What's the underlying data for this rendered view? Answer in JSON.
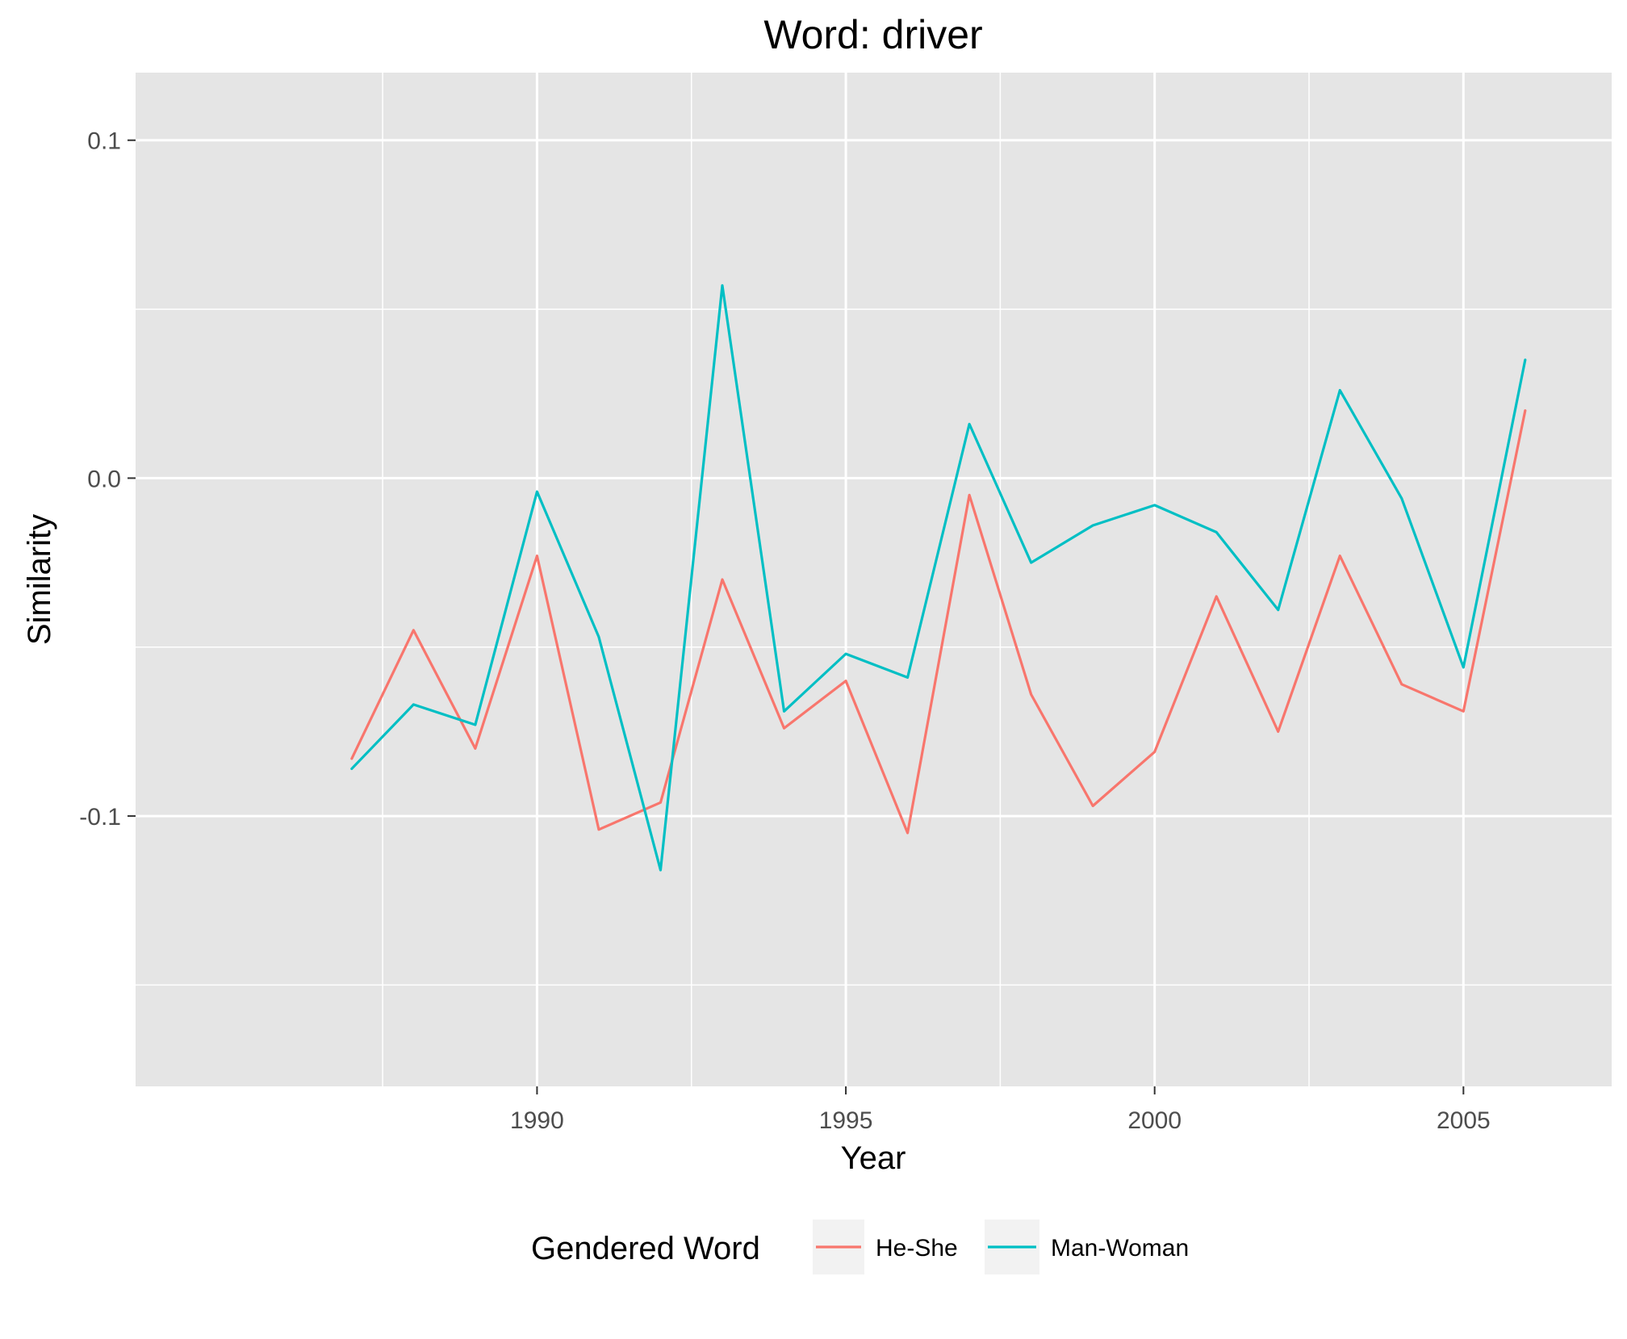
{
  "chart_data": {
    "type": "line",
    "title": "Word: driver",
    "xlabel": "Year",
    "ylabel": "Similarity",
    "x": [
      1987,
      1988,
      1989,
      1990,
      1991,
      1992,
      1993,
      1994,
      1995,
      1996,
      1997,
      1998,
      1999,
      2000,
      2001,
      2002,
      2003,
      2004,
      2005,
      2006
    ],
    "xlim": [
      1983.5,
      2007.4
    ],
    "ylim": [
      -0.18,
      0.12
    ],
    "x_ticks": [
      1990,
      1995,
      2000,
      2005
    ],
    "x_tick_labels": [
      "1990",
      "1995",
      "2000",
      "2005"
    ],
    "x_minor_ticks": [
      1987.5,
      1992.5,
      1997.5,
      2002.5
    ],
    "y_ticks": [
      -0.1,
      0.0,
      0.1
    ],
    "y_tick_labels": [
      "-0.1",
      "0.0",
      "0.1"
    ],
    "y_minor_ticks": [
      -0.15,
      -0.05,
      0.05
    ],
    "grid": true,
    "background": "#e5e5e5",
    "legend": {
      "title": "Gendered Word",
      "position": "bottom"
    },
    "series": [
      {
        "name": "He-She",
        "color": "#f8766d",
        "values": [
          -0.083,
          -0.045,
          -0.08,
          -0.023,
          -0.104,
          -0.096,
          -0.03,
          -0.074,
          -0.06,
          -0.105,
          -0.005,
          -0.064,
          -0.097,
          -0.081,
          -0.035,
          -0.075,
          -0.023,
          -0.061,
          -0.069,
          0.02
        ]
      },
      {
        "name": "Man-Woman",
        "color": "#00bfc4",
        "values": [
          -0.086,
          -0.067,
          -0.073,
          -0.004,
          -0.047,
          -0.116,
          0.057,
          -0.069,
          -0.052,
          -0.059,
          0.016,
          -0.025,
          -0.014,
          -0.008,
          -0.016,
          -0.039,
          0.026,
          -0.006,
          -0.056,
          0.035
        ]
      }
    ]
  }
}
